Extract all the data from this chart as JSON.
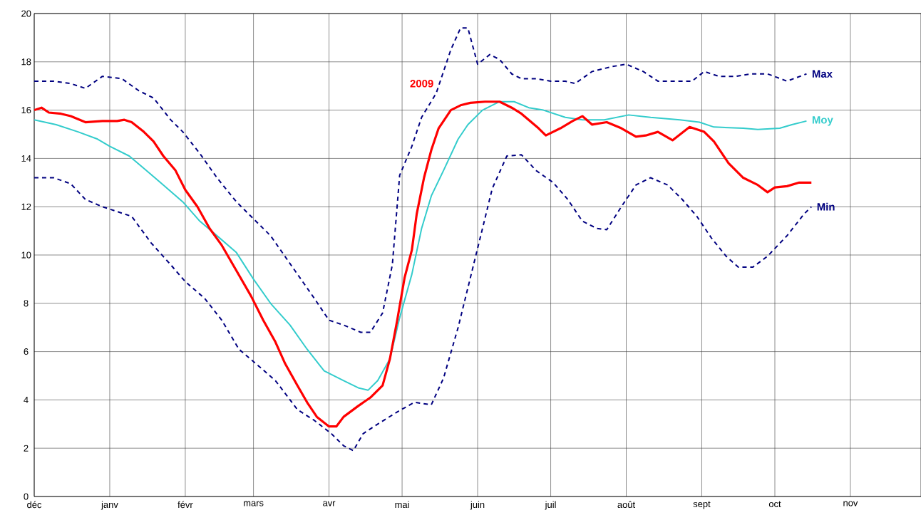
{
  "chart_data": {
    "type": "line",
    "xlim": [
      "2008-12-01",
      "2009-11-30"
    ],
    "ylim": [
      0,
      20
    ],
    "xticks": [
      {
        "value": "2008-12-01",
        "label": "déc"
      },
      {
        "value": "2009-01-01",
        "label": "janv"
      },
      {
        "value": "2009-02-01",
        "label": "févr"
      },
      {
        "value": "2009-03-01",
        "label": "mars"
      },
      {
        "value": "2009-04-01",
        "label": "avr"
      },
      {
        "value": "2009-05-01",
        "label": "mai"
      },
      {
        "value": "2009-06-01",
        "label": "juin"
      },
      {
        "value": "2009-07-01",
        "label": "juil"
      },
      {
        "value": "2009-08-01",
        "label": "août"
      },
      {
        "value": "2009-09-01",
        "label": "sept"
      },
      {
        "value": "2009-10-01",
        "label": "oct"
      },
      {
        "value": "2009-11-01",
        "label": "nov"
      }
    ],
    "yticks": [
      0,
      2,
      4,
      6,
      8,
      10,
      12,
      14,
      16,
      18,
      20
    ],
    "grid": true,
    "marker": "none",
    "series": [
      {
        "name": "Max",
        "color": "#000080",
        "line_style": "dashed",
        "x": [
          "2008-12-01",
          "2008-12-09",
          "2008-12-16",
          "2008-12-22",
          "2008-12-29",
          "2009-01-06",
          "2009-01-13",
          "2009-01-19",
          "2009-01-26",
          "2009-01-31",
          "2009-02-07",
          "2009-02-14",
          "2009-02-22",
          "2009-02-28",
          "2009-03-08",
          "2009-03-17",
          "2009-03-26",
          "2009-04-01",
          "2009-04-07",
          "2009-04-14",
          "2009-04-18",
          "2009-04-23",
          "2009-04-27",
          "2009-04-30",
          "2009-05-05",
          "2009-05-09",
          "2009-05-15",
          "2009-05-21",
          "2009-05-25",
          "2009-05-28",
          "2009-06-01",
          "2009-06-06",
          "2009-06-10",
          "2009-06-15",
          "2009-06-19",
          "2009-06-25",
          "2009-07-01",
          "2009-07-07",
          "2009-07-11",
          "2009-07-18",
          "2009-07-26",
          "2009-08-01",
          "2009-08-08",
          "2009-08-14",
          "2009-08-21",
          "2009-08-28",
          "2009-09-02",
          "2009-09-08",
          "2009-09-15",
          "2009-09-21",
          "2009-09-28",
          "2009-10-06",
          "2009-10-14"
        ],
        "values": [
          17.2,
          17.2,
          17.1,
          16.9,
          17.4,
          17.3,
          16.8,
          16.5,
          15.6,
          15.1,
          14.2,
          13.2,
          12.2,
          11.6,
          10.8,
          9.5,
          8.2,
          7.3,
          7.1,
          6.8,
          6.8,
          7.6,
          9.6,
          13.3,
          14.5,
          15.7,
          16.7,
          18.5,
          19.4,
          19.4,
          17.9,
          18.3,
          18.1,
          17.5,
          17.3,
          17.3,
          17.2,
          17.2,
          17.1,
          17.6,
          17.8,
          17.9,
          17.6,
          17.2,
          17.2,
          17.2,
          17.6,
          17.4,
          17.4,
          17.5,
          17.5,
          17.2,
          17.5
        ]
      },
      {
        "name": "Moy",
        "color": "#33cccc",
        "line_style": "solid",
        "x": [
          "2008-12-01",
          "2008-12-10",
          "2008-12-19",
          "2008-12-27",
          "2009-01-01",
          "2009-01-09",
          "2009-01-16",
          "2009-01-23",
          "2009-01-31",
          "2009-02-07",
          "2009-02-14",
          "2009-02-22",
          "2009-03-01",
          "2009-03-08",
          "2009-03-16",
          "2009-03-23",
          "2009-03-30",
          "2009-04-07",
          "2009-04-13",
          "2009-04-17",
          "2009-04-21",
          "2009-04-26",
          "2009-04-30",
          "2009-05-05",
          "2009-05-09",
          "2009-05-13",
          "2009-05-18",
          "2009-05-24",
          "2009-05-28",
          "2009-06-03",
          "2009-06-10",
          "2009-06-16",
          "2009-06-22",
          "2009-06-28",
          "2009-07-07",
          "2009-07-14",
          "2009-07-23",
          "2009-08-02",
          "2009-08-11",
          "2009-08-23",
          "2009-08-31",
          "2009-09-06",
          "2009-09-18",
          "2009-09-24",
          "2009-10-03",
          "2009-10-08",
          "2009-10-14"
        ],
        "values": [
          15.6,
          15.4,
          15.1,
          14.8,
          14.5,
          14.1,
          13.5,
          12.9,
          12.2,
          11.4,
          10.8,
          10.1,
          9.0,
          8.0,
          7.1,
          6.1,
          5.2,
          4.8,
          4.5,
          4.4,
          4.8,
          5.7,
          7.4,
          9.2,
          11.1,
          12.45,
          13.5,
          14.8,
          15.4,
          16.0,
          16.35,
          16.35,
          16.1,
          16.0,
          15.7,
          15.6,
          15.6,
          15.8,
          15.7,
          15.6,
          15.5,
          15.3,
          15.25,
          15.2,
          15.25,
          15.4,
          15.55
        ]
      },
      {
        "name": "Min",
        "color": "#000080",
        "line_style": "dashed",
        "x": [
          "2008-12-01",
          "2008-12-09",
          "2008-12-16",
          "2008-12-22",
          "2008-12-29",
          "2009-01-04",
          "2009-01-10",
          "2009-01-18",
          "2009-01-26",
          "2009-02-01",
          "2009-02-09",
          "2009-02-16",
          "2009-02-23",
          "2009-03-02",
          "2009-03-10",
          "2009-03-19",
          "2009-03-26",
          "2009-04-02",
          "2009-04-07",
          "2009-04-11",
          "2009-04-15",
          "2009-04-21",
          "2009-04-29",
          "2009-05-06",
          "2009-05-13",
          "2009-05-18",
          "2009-05-24",
          "2009-05-29",
          "2009-06-03",
          "2009-06-07",
          "2009-06-13",
          "2009-06-19",
          "2009-06-25",
          "2009-07-02",
          "2009-07-08",
          "2009-07-14",
          "2009-07-20",
          "2009-07-24",
          "2009-07-30",
          "2009-08-05",
          "2009-08-11",
          "2009-08-18",
          "2009-08-24",
          "2009-08-30",
          "2009-09-05",
          "2009-09-11",
          "2009-09-16",
          "2009-09-22",
          "2009-09-28",
          "2009-10-06",
          "2009-10-13",
          "2009-10-16"
        ],
        "values": [
          13.2,
          13.2,
          12.95,
          12.3,
          12.0,
          11.8,
          11.6,
          10.5,
          9.6,
          8.9,
          8.2,
          7.3,
          6.1,
          5.5,
          4.8,
          3.6,
          3.15,
          2.6,
          2.1,
          1.9,
          2.6,
          3.0,
          3.5,
          3.9,
          3.8,
          4.9,
          7.0,
          9.05,
          11.1,
          12.75,
          14.1,
          14.15,
          13.5,
          13.0,
          12.3,
          11.4,
          11.1,
          11.05,
          12.0,
          12.9,
          13.2,
          12.9,
          12.3,
          11.6,
          10.7,
          9.95,
          9.5,
          9.5,
          9.95,
          10.8,
          11.7,
          12.0
        ]
      },
      {
        "name": "2009",
        "color": "#ff0000",
        "line_style": "solid",
        "x": [
          "2008-12-01",
          "2008-12-04",
          "2008-12-07",
          "2008-12-12",
          "2008-12-16",
          "2008-12-22",
          "2008-12-29",
          "2009-01-04",
          "2009-01-07",
          "2009-01-10",
          "2009-01-15",
          "2009-01-19",
          "2009-01-23",
          "2009-01-28",
          "2009-02-01",
          "2009-02-06",
          "2009-02-11",
          "2009-02-16",
          "2009-02-22",
          "2009-02-28",
          "2009-03-05",
          "2009-03-10",
          "2009-03-14",
          "2009-03-19",
          "2009-03-23",
          "2009-03-27",
          "2009-04-01",
          "2009-04-04",
          "2009-04-07",
          "2009-04-13",
          "2009-04-18",
          "2009-04-23",
          "2009-04-26",
          "2009-04-29",
          "2009-05-02",
          "2009-05-05",
          "2009-05-07",
          "2009-05-10",
          "2009-05-13",
          "2009-05-16",
          "2009-05-21",
          "2009-05-25",
          "2009-05-29",
          "2009-06-04",
          "2009-06-10",
          "2009-06-15",
          "2009-06-19",
          "2009-06-26",
          "2009-06-29",
          "2009-07-05",
          "2009-07-10",
          "2009-07-14",
          "2009-07-18",
          "2009-07-24",
          "2009-07-30",
          "2009-08-05",
          "2009-08-09",
          "2009-08-14",
          "2009-08-20",
          "2009-08-27",
          "2009-09-02",
          "2009-09-06",
          "2009-09-12",
          "2009-09-18",
          "2009-09-24",
          "2009-09-28",
          "2009-10-01",
          "2009-10-06",
          "2009-10-11",
          "2009-10-16"
        ],
        "values": [
          16.0,
          16.1,
          15.9,
          15.85,
          15.75,
          15.5,
          15.55,
          15.55,
          15.6,
          15.5,
          15.1,
          14.7,
          14.1,
          13.5,
          12.7,
          12.0,
          11.1,
          10.4,
          9.35,
          8.3,
          7.3,
          6.4,
          5.5,
          4.6,
          3.9,
          3.3,
          2.9,
          2.9,
          3.3,
          3.75,
          4.1,
          4.6,
          5.7,
          7.3,
          9.05,
          10.2,
          11.7,
          13.2,
          14.35,
          15.25,
          16.0,
          16.2,
          16.3,
          16.35,
          16.35,
          16.1,
          15.85,
          15.25,
          14.95,
          15.25,
          15.55,
          15.75,
          15.4,
          15.5,
          15.25,
          14.9,
          14.95,
          15.1,
          14.75,
          15.3,
          15.1,
          14.7,
          13.8,
          13.2,
          12.9,
          12.6,
          12.8,
          12.85,
          13.0,
          13.0
        ]
      }
    ]
  }
}
